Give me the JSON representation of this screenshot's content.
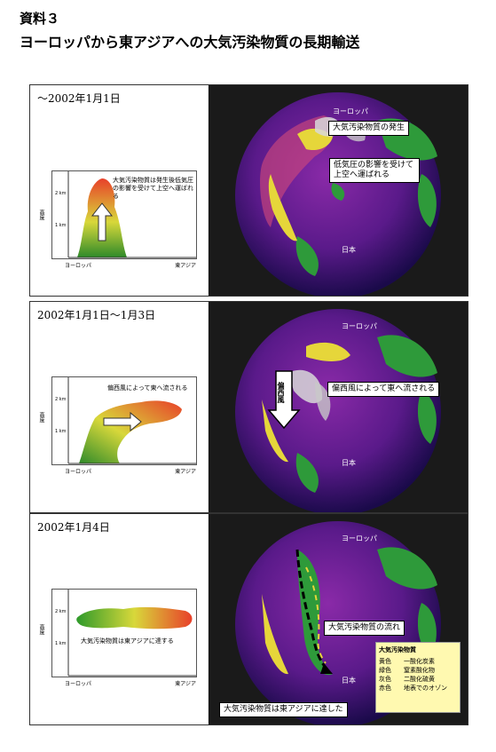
{
  "header": {
    "label": "資料３",
    "title": "ヨーロッパから東アジアへの大気汚染物質の長期輸送"
  },
  "common": {
    "y_axis_label": "高度",
    "tick_2km": "2 km",
    "tick_1km": "1 km",
    "x_left": "ヨーロッパ",
    "x_right": "東アジア"
  },
  "panels": [
    {
      "date": "〜2002年1月1日",
      "chart_note": "大気汚染物質は発生後低気圧の影響を受けて上空へ運ばれる",
      "callouts": [
        "大気汚染物質の発生",
        "低気圧の影響を受けて上空へ運ばれる"
      ],
      "labels": [
        "ヨーロッパ",
        "日本"
      ]
    },
    {
      "date": "2002年1月1日〜1月3日",
      "chart_note": "偏西風によって東へ流される",
      "callouts": [
        "偏西風によって東へ流される"
      ],
      "arrow_label": "偏西風",
      "labels": [
        "ヨーロッパ",
        "日本"
      ]
    },
    {
      "date": "2002年1月4日",
      "chart_note": "大気汚染物質は東アジアに達する",
      "callouts": [
        "大気汚染物質の流れ",
        "大気汚染物質は東アジアに達した"
      ],
      "labels": [
        "ヨーロッパ",
        "日本"
      ],
      "legend": {
        "title": "大気汚染物質",
        "rows": [
          {
            "color": "黄色",
            "meaning": "一酸化炭素"
          },
          {
            "color": "緑色",
            "meaning": "窒素酸化物"
          },
          {
            "color": "灰色",
            "meaning": "二酸化硫黄"
          },
          {
            "color": "赤色",
            "meaning": "地表でのオゾン"
          }
        ]
      }
    }
  ],
  "colors": {
    "globe_deep": "#2a1a6e",
    "globe_purple": "#7a2a9a",
    "land": "#2e9a3a",
    "plume_yellow": "#e6d63a",
    "plume_red": "#e83a2a"
  }
}
